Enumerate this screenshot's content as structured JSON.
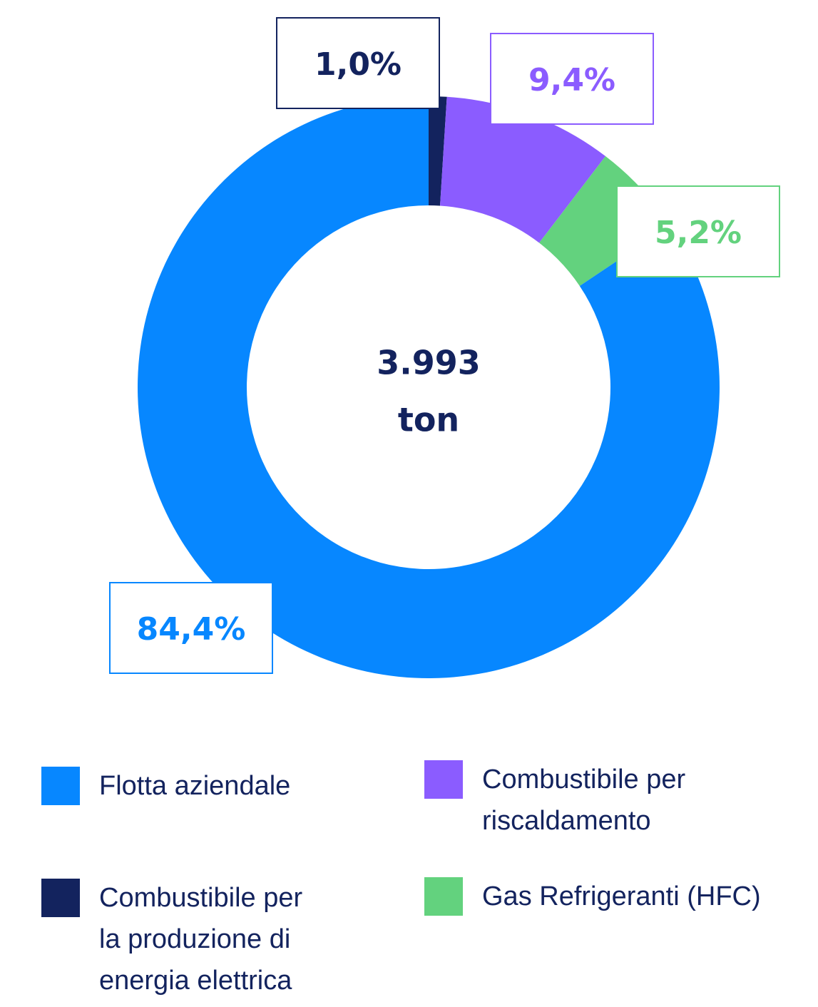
{
  "chart_data": {
    "type": "pie",
    "categories": [
      "Combustibile per la produzione di energia elettrica",
      "Combustibile per riscaldamento",
      "Gas Refrigeranti (HFC)",
      "Flotta aziendale"
    ],
    "values": [
      1.0,
      9.4,
      5.2,
      84.4
    ],
    "value_labels": [
      "1,0%",
      "9,4%",
      "5,2%",
      "84,4%"
    ],
    "colors": [
      "#13235e",
      "#8b5cff",
      "#63d27e",
      "#0787ff"
    ],
    "center_value": "3.993",
    "center_unit": "ton"
  }
}
